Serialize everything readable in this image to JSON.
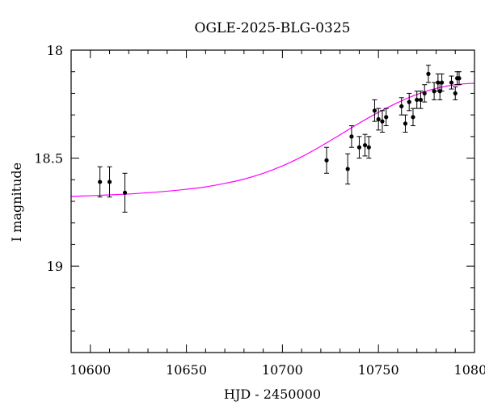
{
  "chart_data": {
    "type": "scatter",
    "title": "OGLE-2025-BLG-0325",
    "xlabel": "HJD - 2450000",
    "ylabel": "I magnitude",
    "xlim": [
      10590,
      10800
    ],
    "ylim": [
      19.4,
      18.0
    ],
    "y_inverted": true,
    "x_ticks": [
      10600,
      10650,
      10700,
      10750,
      10800
    ],
    "x_tick_labels": [
      "10600",
      "10650",
      "10700",
      "10750",
      "10800"
    ],
    "y_ticks": [
      18,
      18.5,
      19
    ],
    "y_tick_labels": [
      "18",
      "18.5",
      "19"
    ],
    "points": [
      {
        "x": 10605,
        "y": 18.61,
        "err": 0.07
      },
      {
        "x": 10610,
        "y": 18.61,
        "err": 0.07
      },
      {
        "x": 10618,
        "y": 18.66,
        "err": 0.09
      },
      {
        "x": 10723,
        "y": 18.51,
        "err": 0.06
      },
      {
        "x": 10734,
        "y": 18.55,
        "err": 0.07
      },
      {
        "x": 10736,
        "y": 18.4,
        "err": 0.05
      },
      {
        "x": 10740,
        "y": 18.45,
        "err": 0.05
      },
      {
        "x": 10743,
        "y": 18.44,
        "err": 0.05
      },
      {
        "x": 10745,
        "y": 18.45,
        "err": 0.05
      },
      {
        "x": 10748,
        "y": 18.28,
        "err": 0.05
      },
      {
        "x": 10750,
        "y": 18.32,
        "err": 0.05
      },
      {
        "x": 10752,
        "y": 18.33,
        "err": 0.05
      },
      {
        "x": 10754,
        "y": 18.31,
        "err": 0.04
      },
      {
        "x": 10762,
        "y": 18.26,
        "err": 0.04
      },
      {
        "x": 10764,
        "y": 18.34,
        "err": 0.04
      },
      {
        "x": 10766,
        "y": 18.24,
        "err": 0.04
      },
      {
        "x": 10768,
        "y": 18.31,
        "err": 0.04
      },
      {
        "x": 10770,
        "y": 18.23,
        "err": 0.04
      },
      {
        "x": 10772,
        "y": 18.23,
        "err": 0.04
      },
      {
        "x": 10774,
        "y": 18.2,
        "err": 0.04
      },
      {
        "x": 10776,
        "y": 18.11,
        "err": 0.04
      },
      {
        "x": 10779,
        "y": 18.19,
        "err": 0.04
      },
      {
        "x": 10781,
        "y": 18.15,
        "err": 0.04
      },
      {
        "x": 10782,
        "y": 18.19,
        "err": 0.04
      },
      {
        "x": 10783,
        "y": 18.15,
        "err": 0.04
      },
      {
        "x": 10788,
        "y": 18.15,
        "err": 0.03
      },
      {
        "x": 10790,
        "y": 18.2,
        "err": 0.03
      },
      {
        "x": 10791,
        "y": 18.13,
        "err": 0.03
      },
      {
        "x": 10792,
        "y": 18.13,
        "err": 0.03
      }
    ],
    "model": {
      "color": "#ff00ff",
      "x": [
        10590,
        10600,
        10610,
        10620,
        10630,
        10640,
        10650,
        10660,
        10670,
        10680,
        10690,
        10700,
        10710,
        10720,
        10730,
        10740,
        10750,
        10760,
        10770,
        10780,
        10790,
        10800
      ],
      "y": [
        18.677,
        18.674,
        18.67,
        18.666,
        18.66,
        18.653,
        18.644,
        18.633,
        18.617,
        18.597,
        18.57,
        18.536,
        18.494,
        18.445,
        18.392,
        18.338,
        18.288,
        18.243,
        18.205,
        18.177,
        18.16,
        18.153
      ]
    },
    "marker_color": "#000000",
    "grid": false
  }
}
